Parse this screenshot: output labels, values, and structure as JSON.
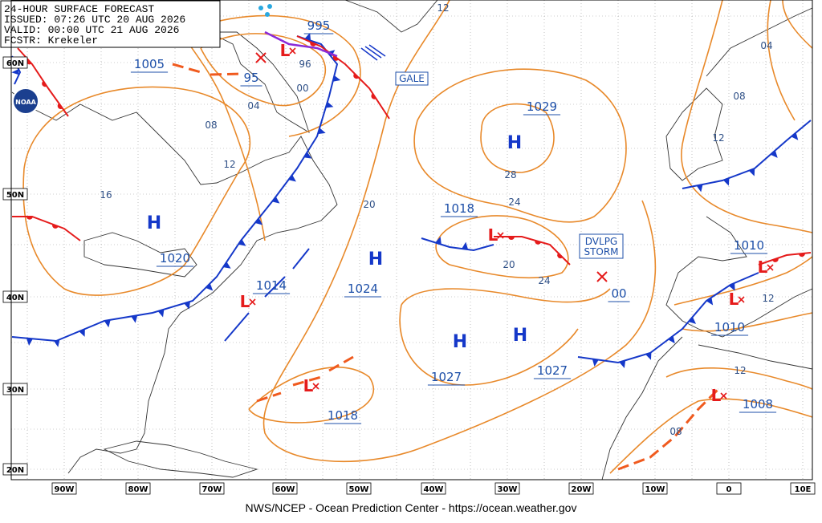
{
  "header": {
    "lines": [
      "24-HOUR SURFACE FORECAST",
      "ISSUED: 07:26 UTC 20 AUG 2026",
      "VALID:  00:00 UTC 21 AUG 2026",
      "FCSTR:  Krekeler"
    ]
  },
  "logo": "NOAA",
  "footer": "NWS/NCEP - Ocean Prediction Center - https://ocean.weather.gov",
  "lat_labels": [
    "60N",
    "50N",
    "40N",
    "30N",
    "20N"
  ],
  "lon_labels": [
    "90W",
    "80W",
    "70W",
    "60W",
    "50W",
    "40W",
    "30W",
    "20W",
    "10W",
    "0",
    "10E"
  ],
  "high_symbols": [
    "H",
    "H",
    "H",
    "H",
    "H"
  ],
  "low_symbols": [
    "L",
    "L",
    "L",
    "L",
    "L",
    "L",
    "L"
  ],
  "pressure_labels": [
    "995",
    "1005",
    "95",
    "1020",
    "1014",
    "1024",
    "1029",
    "1018",
    "1027",
    "1027",
    "1018",
    "1010",
    "1010",
    "1008",
    "00"
  ],
  "isobar_labels": [
    "12",
    "96",
    "00",
    "04",
    "08",
    "12",
    "16",
    "20",
    "28",
    "24",
    "20",
    "24",
    "08",
    "04",
    "12",
    "12",
    "12",
    "08"
  ],
  "boxes": {
    "gale": "GALE",
    "storm": [
      "DVLPG",
      "STORM"
    ]
  }
}
